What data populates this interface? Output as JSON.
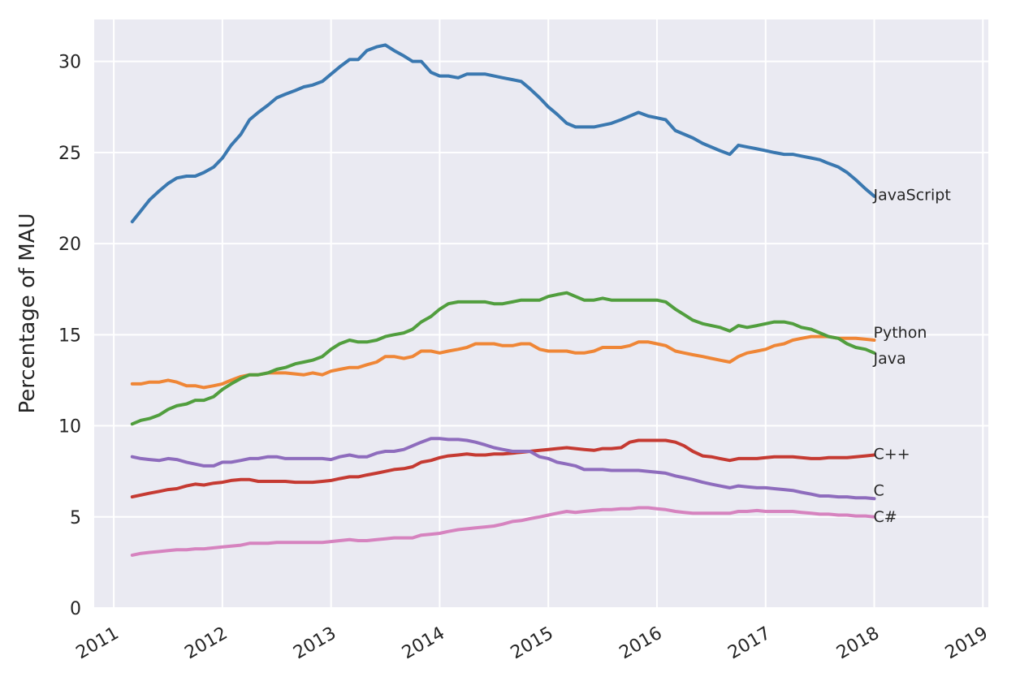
{
  "chart_data": {
    "type": "line",
    "title": "",
    "xlabel": "",
    "ylabel": "Percentage of MAU",
    "xlim": [
      2010.82,
      2019.05
    ],
    "ylim": [
      0,
      32.3
    ],
    "xticks": [
      2011,
      2012,
      2013,
      2014,
      2015,
      2016,
      2017,
      2018,
      2019
    ],
    "xtick_labels": [
      "2011",
      "2012",
      "2013",
      "2014",
      "2015",
      "2016",
      "2017",
      "2018",
      "2019"
    ],
    "yticks": [
      0,
      5,
      10,
      15,
      20,
      25,
      30
    ],
    "ytick_labels": [
      "0",
      "5",
      "10",
      "15",
      "20",
      "25",
      "30"
    ],
    "grid": true,
    "legend": "none",
    "background": "#eaeaf2",
    "series": [
      {
        "name": "JavaScript",
        "color": "#3a78b0",
        "x": [
          2011.17,
          2011.25,
          2011.33,
          2011.42,
          2011.5,
          2011.58,
          2011.67,
          2011.75,
          2011.83,
          2011.92,
          2012.0,
          2012.08,
          2012.17,
          2012.25,
          2012.33,
          2012.42,
          2012.5,
          2012.58,
          2012.67,
          2012.75,
          2012.83,
          2012.92,
          2013.0,
          2013.08,
          2013.17,
          2013.25,
          2013.33,
          2013.42,
          2013.5,
          2013.58,
          2013.67,
          2013.75,
          2013.83,
          2013.92,
          2014.0,
          2014.08,
          2014.17,
          2014.25,
          2014.33,
          2014.42,
          2014.5,
          2014.58,
          2014.67,
          2014.75,
          2014.83,
          2014.92,
          2015.0,
          2015.08,
          2015.17,
          2015.25,
          2015.33,
          2015.42,
          2015.5,
          2015.58,
          2015.67,
          2015.75,
          2015.83,
          2015.92,
          2016.0,
          2016.08,
          2016.17,
          2016.25,
          2016.33,
          2016.42,
          2016.5,
          2016.58,
          2016.67,
          2016.75,
          2016.83,
          2016.92,
          2017.0,
          2017.08,
          2017.17,
          2017.25,
          2017.33,
          2017.42,
          2017.5,
          2017.58,
          2017.67,
          2017.75,
          2017.83,
          2017.92,
          2018.0
        ],
        "y": [
          21.2,
          21.8,
          22.4,
          22.9,
          23.3,
          23.6,
          23.7,
          23.7,
          23.9,
          24.2,
          24.7,
          25.4,
          26.0,
          26.8,
          27.2,
          27.6,
          28.0,
          28.2,
          28.4,
          28.6,
          28.7,
          28.9,
          29.3,
          29.7,
          30.1,
          30.1,
          30.6,
          30.8,
          30.9,
          30.6,
          30.3,
          30.0,
          30.0,
          29.4,
          29.2,
          29.2,
          29.1,
          29.3,
          29.3,
          29.3,
          29.2,
          29.1,
          29.0,
          28.9,
          28.5,
          28.0,
          27.5,
          27.1,
          26.6,
          26.4,
          26.4,
          26.4,
          26.5,
          26.6,
          26.8,
          27.0,
          27.2,
          27.0,
          26.9,
          26.8,
          26.2,
          26.0,
          25.8,
          25.5,
          25.3,
          25.1,
          24.9,
          25.4,
          25.3,
          25.2,
          25.1,
          25.0,
          24.9,
          24.9,
          24.8,
          24.7,
          24.6,
          24.4,
          24.2,
          23.9,
          23.5,
          23.0,
          22.6
        ]
      },
      {
        "name": "Python",
        "color": "#ef8636",
        "x": [
          2011.17,
          2011.25,
          2011.33,
          2011.42,
          2011.5,
          2011.58,
          2011.67,
          2011.75,
          2011.83,
          2011.92,
          2012.0,
          2012.08,
          2012.17,
          2012.25,
          2012.33,
          2012.42,
          2012.5,
          2012.58,
          2012.67,
          2012.75,
          2012.83,
          2012.92,
          2013.0,
          2013.08,
          2013.17,
          2013.25,
          2013.33,
          2013.42,
          2013.5,
          2013.58,
          2013.67,
          2013.75,
          2013.83,
          2013.92,
          2014.0,
          2014.08,
          2014.17,
          2014.25,
          2014.33,
          2014.42,
          2014.5,
          2014.58,
          2014.67,
          2014.75,
          2014.83,
          2014.92,
          2015.0,
          2015.08,
          2015.17,
          2015.25,
          2015.33,
          2015.42,
          2015.5,
          2015.58,
          2015.67,
          2015.75,
          2015.83,
          2015.92,
          2016.0,
          2016.08,
          2016.17,
          2016.25,
          2016.33,
          2016.42,
          2016.5,
          2016.58,
          2016.67,
          2016.75,
          2016.83,
          2016.92,
          2017.0,
          2017.08,
          2017.17,
          2017.25,
          2017.33,
          2017.42,
          2017.5,
          2017.58,
          2017.67,
          2017.75,
          2017.83,
          2017.92,
          2018.0
        ],
        "y": [
          12.3,
          12.3,
          12.4,
          12.4,
          12.5,
          12.4,
          12.2,
          12.2,
          12.1,
          12.2,
          12.3,
          12.5,
          12.7,
          12.8,
          12.8,
          12.9,
          12.9,
          12.9,
          12.85,
          12.8,
          12.9,
          12.8,
          13.0,
          13.1,
          13.2,
          13.2,
          13.35,
          13.5,
          13.8,
          13.8,
          13.7,
          13.8,
          14.1,
          14.1,
          14.0,
          14.1,
          14.2,
          14.3,
          14.5,
          14.5,
          14.5,
          14.4,
          14.4,
          14.5,
          14.5,
          14.2,
          14.1,
          14.1,
          14.1,
          14.0,
          14.0,
          14.1,
          14.3,
          14.3,
          14.3,
          14.4,
          14.6,
          14.6,
          14.5,
          14.4,
          14.1,
          14.0,
          13.9,
          13.8,
          13.7,
          13.6,
          13.5,
          13.8,
          14.0,
          14.1,
          14.2,
          14.4,
          14.5,
          14.7,
          14.8,
          14.9,
          14.9,
          14.9,
          14.8,
          14.8,
          14.8,
          14.75,
          14.7
        ]
      },
      {
        "name": "Java",
        "color": "#519e3e",
        "x": [
          2011.17,
          2011.25,
          2011.33,
          2011.42,
          2011.5,
          2011.58,
          2011.67,
          2011.75,
          2011.83,
          2011.92,
          2012.0,
          2012.08,
          2012.17,
          2012.25,
          2012.33,
          2012.42,
          2012.5,
          2012.58,
          2012.67,
          2012.75,
          2012.83,
          2012.92,
          2013.0,
          2013.08,
          2013.17,
          2013.25,
          2013.33,
          2013.42,
          2013.5,
          2013.58,
          2013.67,
          2013.75,
          2013.83,
          2013.92,
          2014.0,
          2014.08,
          2014.17,
          2014.25,
          2014.33,
          2014.42,
          2014.5,
          2014.58,
          2014.67,
          2014.75,
          2014.83,
          2014.92,
          2015.0,
          2015.08,
          2015.17,
          2015.25,
          2015.33,
          2015.42,
          2015.5,
          2015.58,
          2015.67,
          2015.75,
          2015.83,
          2015.92,
          2016.0,
          2016.08,
          2016.17,
          2016.25,
          2016.33,
          2016.42,
          2016.5,
          2016.58,
          2016.67,
          2016.75,
          2016.83,
          2016.92,
          2017.0,
          2017.08,
          2017.17,
          2017.25,
          2017.33,
          2017.42,
          2017.5,
          2017.58,
          2017.67,
          2017.75,
          2017.83,
          2017.92,
          2018.0
        ],
        "y": [
          10.1,
          10.3,
          10.4,
          10.6,
          10.9,
          11.1,
          11.2,
          11.4,
          11.4,
          11.6,
          12.0,
          12.3,
          12.6,
          12.8,
          12.8,
          12.9,
          13.1,
          13.2,
          13.4,
          13.5,
          13.6,
          13.8,
          14.2,
          14.5,
          14.7,
          14.6,
          14.6,
          14.7,
          14.9,
          15.0,
          15.1,
          15.3,
          15.7,
          16.0,
          16.4,
          16.7,
          16.8,
          16.8,
          16.8,
          16.8,
          16.7,
          16.7,
          16.8,
          16.9,
          16.9,
          16.9,
          17.1,
          17.2,
          17.3,
          17.1,
          16.9,
          16.9,
          17.0,
          16.9,
          16.9,
          16.9,
          16.9,
          16.9,
          16.9,
          16.8,
          16.4,
          16.1,
          15.8,
          15.6,
          15.5,
          15.4,
          15.2,
          15.5,
          15.4,
          15.5,
          15.6,
          15.7,
          15.7,
          15.6,
          15.4,
          15.3,
          15.1,
          14.9,
          14.8,
          14.5,
          14.3,
          14.2,
          14.0
        ]
      },
      {
        "name": "C++",
        "color": "#c53a32",
        "x": [
          2011.17,
          2011.25,
          2011.33,
          2011.42,
          2011.5,
          2011.58,
          2011.67,
          2011.75,
          2011.83,
          2011.92,
          2012.0,
          2012.08,
          2012.17,
          2012.25,
          2012.33,
          2012.42,
          2012.5,
          2012.58,
          2012.67,
          2012.75,
          2012.83,
          2012.92,
          2013.0,
          2013.08,
          2013.17,
          2013.25,
          2013.33,
          2013.42,
          2013.5,
          2013.58,
          2013.67,
          2013.75,
          2013.83,
          2013.92,
          2014.0,
          2014.08,
          2014.17,
          2014.25,
          2014.33,
          2014.42,
          2014.5,
          2014.58,
          2014.67,
          2014.75,
          2014.83,
          2014.92,
          2015.0,
          2015.08,
          2015.17,
          2015.25,
          2015.33,
          2015.42,
          2015.5,
          2015.58,
          2015.67,
          2015.75,
          2015.83,
          2015.92,
          2016.0,
          2016.08,
          2016.17,
          2016.25,
          2016.33,
          2016.42,
          2016.5,
          2016.58,
          2016.67,
          2016.75,
          2016.83,
          2016.92,
          2017.0,
          2017.08,
          2017.17,
          2017.25,
          2017.33,
          2017.42,
          2017.5,
          2017.58,
          2017.67,
          2017.75,
          2017.83,
          2017.92,
          2018.0
        ],
        "y": [
          6.1,
          6.2,
          6.3,
          6.4,
          6.5,
          6.55,
          6.7,
          6.8,
          6.75,
          6.85,
          6.9,
          7.0,
          7.05,
          7.05,
          6.95,
          6.95,
          6.95,
          6.95,
          6.9,
          6.9,
          6.9,
          6.95,
          7.0,
          7.1,
          7.2,
          7.2,
          7.3,
          7.4,
          7.5,
          7.6,
          7.65,
          7.75,
          8.0,
          8.1,
          8.25,
          8.35,
          8.4,
          8.45,
          8.4,
          8.4,
          8.45,
          8.45,
          8.5,
          8.55,
          8.6,
          8.65,
          8.7,
          8.75,
          8.8,
          8.75,
          8.7,
          8.65,
          8.75,
          8.75,
          8.8,
          9.1,
          9.2,
          9.2,
          9.2,
          9.2,
          9.1,
          8.9,
          8.6,
          8.35,
          8.3,
          8.2,
          8.1,
          8.2,
          8.2,
          8.2,
          8.25,
          8.3,
          8.3,
          8.3,
          8.25,
          8.2,
          8.2,
          8.25,
          8.25,
          8.25,
          8.3,
          8.35,
          8.4
        ]
      },
      {
        "name": "C",
        "color": "#8e6cbd",
        "x": [
          2011.17,
          2011.25,
          2011.33,
          2011.42,
          2011.5,
          2011.58,
          2011.67,
          2011.75,
          2011.83,
          2011.92,
          2012.0,
          2012.08,
          2012.17,
          2012.25,
          2012.33,
          2012.42,
          2012.5,
          2012.58,
          2012.67,
          2012.75,
          2012.83,
          2012.92,
          2013.0,
          2013.08,
          2013.17,
          2013.25,
          2013.33,
          2013.42,
          2013.5,
          2013.58,
          2013.67,
          2013.75,
          2013.83,
          2013.92,
          2014.0,
          2014.08,
          2014.17,
          2014.25,
          2014.33,
          2014.42,
          2014.5,
          2014.58,
          2014.67,
          2014.75,
          2014.83,
          2014.92,
          2015.0,
          2015.08,
          2015.17,
          2015.25,
          2015.33,
          2015.42,
          2015.5,
          2015.58,
          2015.67,
          2015.75,
          2015.83,
          2015.92,
          2016.0,
          2016.08,
          2016.17,
          2016.25,
          2016.33,
          2016.42,
          2016.5,
          2016.58,
          2016.67,
          2016.75,
          2016.83,
          2016.92,
          2017.0,
          2017.08,
          2017.17,
          2017.25,
          2017.33,
          2017.42,
          2017.5,
          2017.58,
          2017.67,
          2017.75,
          2017.83,
          2017.92,
          2018.0
        ],
        "y": [
          8.3,
          8.2,
          8.15,
          8.1,
          8.2,
          8.15,
          8.0,
          7.9,
          7.8,
          7.8,
          8.0,
          8.0,
          8.1,
          8.2,
          8.2,
          8.3,
          8.3,
          8.2,
          8.2,
          8.2,
          8.2,
          8.2,
          8.15,
          8.3,
          8.4,
          8.3,
          8.3,
          8.5,
          8.6,
          8.6,
          8.7,
          8.9,
          9.1,
          9.3,
          9.3,
          9.25,
          9.25,
          9.2,
          9.1,
          8.95,
          8.8,
          8.7,
          8.6,
          8.6,
          8.6,
          8.3,
          8.2,
          8.0,
          7.9,
          7.8,
          7.6,
          7.6,
          7.6,
          7.55,
          7.55,
          7.55,
          7.55,
          7.5,
          7.45,
          7.4,
          7.25,
          7.15,
          7.05,
          6.9,
          6.8,
          6.7,
          6.6,
          6.7,
          6.65,
          6.6,
          6.6,
          6.55,
          6.5,
          6.45,
          6.35,
          6.25,
          6.15,
          6.15,
          6.1,
          6.1,
          6.05,
          6.05,
          6.0
        ]
      },
      {
        "name": "C#",
        "color": "#d683bf",
        "x": [
          2011.17,
          2011.25,
          2011.33,
          2011.42,
          2011.5,
          2011.58,
          2011.67,
          2011.75,
          2011.83,
          2011.92,
          2012.0,
          2012.08,
          2012.17,
          2012.25,
          2012.33,
          2012.42,
          2012.5,
          2012.58,
          2012.67,
          2012.75,
          2012.83,
          2012.92,
          2013.0,
          2013.08,
          2013.17,
          2013.25,
          2013.33,
          2013.42,
          2013.5,
          2013.58,
          2013.67,
          2013.75,
          2013.83,
          2013.92,
          2014.0,
          2014.08,
          2014.17,
          2014.25,
          2014.33,
          2014.42,
          2014.5,
          2014.58,
          2014.67,
          2014.75,
          2014.83,
          2014.92,
          2015.0,
          2015.08,
          2015.17,
          2015.25,
          2015.33,
          2015.42,
          2015.5,
          2015.58,
          2015.67,
          2015.75,
          2015.83,
          2015.92,
          2016.0,
          2016.08,
          2016.17,
          2016.25,
          2016.33,
          2016.42,
          2016.5,
          2016.58,
          2016.67,
          2016.75,
          2016.83,
          2016.92,
          2017.0,
          2017.08,
          2017.17,
          2017.25,
          2017.33,
          2017.42,
          2017.5,
          2017.58,
          2017.67,
          2017.75,
          2017.83,
          2017.92,
          2018.0
        ],
        "y": [
          2.9,
          3.0,
          3.05,
          3.1,
          3.15,
          3.2,
          3.2,
          3.25,
          3.25,
          3.3,
          3.35,
          3.4,
          3.45,
          3.55,
          3.55,
          3.55,
          3.6,
          3.6,
          3.6,
          3.6,
          3.6,
          3.6,
          3.65,
          3.7,
          3.75,
          3.7,
          3.7,
          3.75,
          3.8,
          3.85,
          3.85,
          3.85,
          4.0,
          4.05,
          4.1,
          4.2,
          4.3,
          4.35,
          4.4,
          4.45,
          4.5,
          4.6,
          4.75,
          4.8,
          4.9,
          5.0,
          5.1,
          5.2,
          5.3,
          5.25,
          5.3,
          5.35,
          5.4,
          5.4,
          5.45,
          5.45,
          5.5,
          5.5,
          5.45,
          5.4,
          5.3,
          5.25,
          5.2,
          5.2,
          5.2,
          5.2,
          5.2,
          5.3,
          5.3,
          5.35,
          5.3,
          5.3,
          5.3,
          5.3,
          5.25,
          5.2,
          5.15,
          5.15,
          5.1,
          5.1,
          5.05,
          5.05,
          5.0
        ]
      }
    ]
  }
}
